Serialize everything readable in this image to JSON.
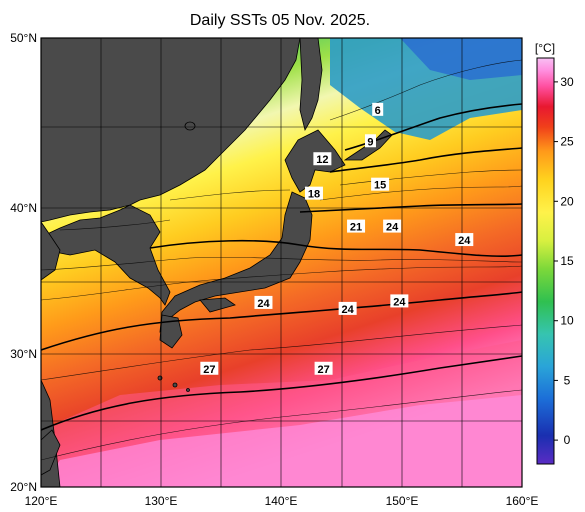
{
  "title": "Daily SSTs 05 Nov. 2025.",
  "map": {
    "lon_range": [
      120,
      160
    ],
    "lat_range": [
      20,
      50
    ],
    "lon_ticks": [
      "120°E",
      "130°E",
      "140°E",
      "150°E",
      "160°E"
    ],
    "lat_ticks": [
      "50°N",
      "40°N",
      "30°N",
      "20°N"
    ],
    "grid": true,
    "land_color": "#4a4a4a"
  },
  "colorbar": {
    "unit": "[°C]",
    "ticks": [
      "30",
      "25",
      "20",
      "15",
      "10",
      "5",
      "0"
    ],
    "range": [
      -2,
      32
    ],
    "colors": [
      "#5a2cc4",
      "#1a2fb0",
      "#1c6ed8",
      "#2aa4d8",
      "#36c4b0",
      "#30c050",
      "#7cd83a",
      "#d8f040",
      "#fff24a",
      "#ffd21e",
      "#ff9a1a",
      "#f0401a",
      "#e81830",
      "#ff4fa0",
      "#ff90e0",
      "#f8c0f4"
    ]
  },
  "contour_labels": [
    {
      "text": "6",
      "lon": 148.0,
      "lat": 45.2
    },
    {
      "text": "9",
      "lon": 147.4,
      "lat": 43.1
    },
    {
      "text": "12",
      "lon": 143.4,
      "lat": 41.9
    },
    {
      "text": "15",
      "lon": 148.2,
      "lat": 40.2
    },
    {
      "text": "18",
      "lon": 142.7,
      "lat": 39.6
    },
    {
      "text": "21",
      "lon": 146.2,
      "lat": 37.4
    },
    {
      "text": "24",
      "lon": 149.2,
      "lat": 37.4
    },
    {
      "text": "24",
      "lon": 155.2,
      "lat": 36.5
    },
    {
      "text": "24",
      "lon": 138.5,
      "lat": 32.3
    },
    {
      "text": "24",
      "lon": 145.5,
      "lat": 31.9
    },
    {
      "text": "24",
      "lon": 149.8,
      "lat": 32.4
    },
    {
      "text": "27",
      "lon": 134.0,
      "lat": 27.9
    },
    {
      "text": "27",
      "lon": 143.5,
      "lat": 27.9
    }
  ]
}
